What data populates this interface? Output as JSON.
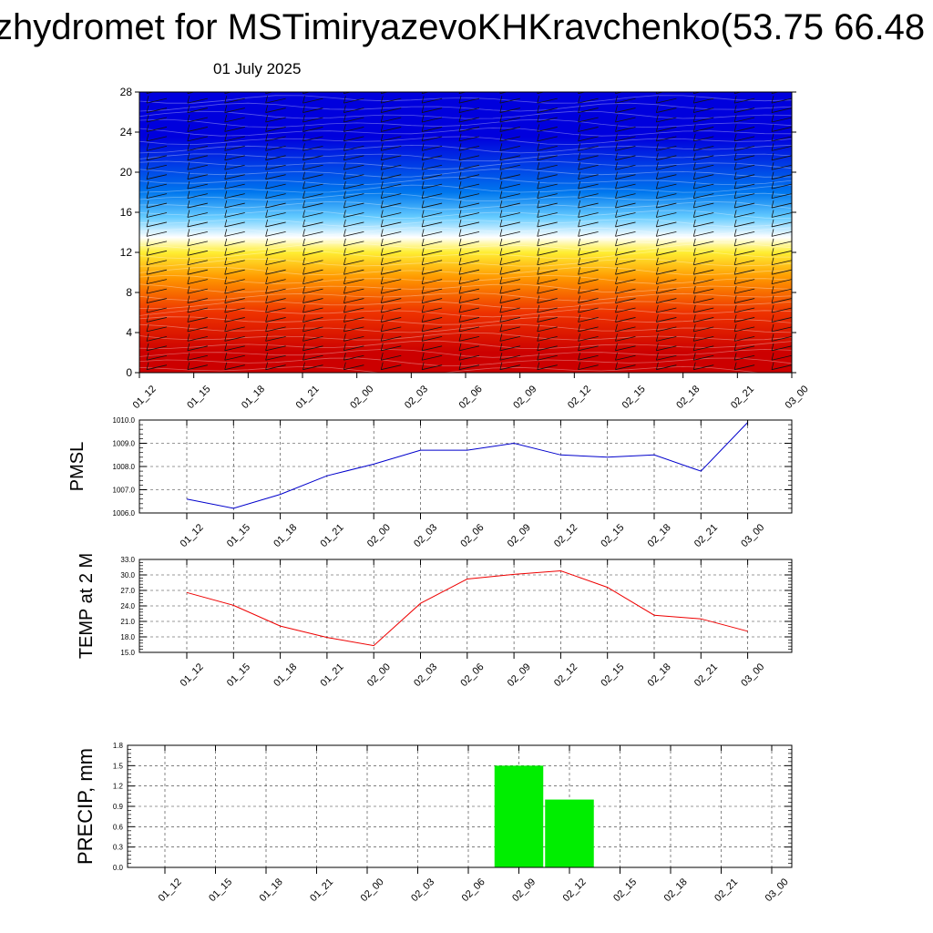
{
  "title": "zhydromet for MSTimiryazevoKHKravchenko(53.75 66.48",
  "date": "01 July 2025",
  "chart_data": [
    {
      "type": "heatmap",
      "ylim": [
        0,
        28
      ],
      "y_ticks": [
        "0",
        "4",
        "8",
        "12",
        "16",
        "20",
        "24",
        "28"
      ],
      "x_ticks": [
        "01_12",
        "01_15",
        "01_18",
        "01_21",
        "02_00",
        "02_03",
        "02_06",
        "02_09",
        "02_12",
        "02_15",
        "02_18",
        "02_21",
        "03_00"
      ],
      "color_bands": [
        {
          "from": 0,
          "to": 4,
          "color": "#cc0000"
        },
        {
          "from": 4,
          "to": 8,
          "color": "#ee3300"
        },
        {
          "from": 8,
          "to": 11,
          "color": "#ff9900"
        },
        {
          "from": 11,
          "to": 13,
          "color": "#ffee33"
        },
        {
          "from": 13,
          "to": 14,
          "color": "#ffffff"
        },
        {
          "from": 14,
          "to": 17,
          "color": "#66ccff"
        },
        {
          "from": 17,
          "to": 19,
          "color": "#0077ee"
        },
        {
          "from": 19,
          "to": 28,
          "color": "#0000dd"
        }
      ]
    },
    {
      "type": "line",
      "ylabel": "PMSL",
      "ylim": [
        1006.0,
        1010.0
      ],
      "y_ticks": [
        "1006.0",
        "1007.0",
        "1008.0",
        "1009.0",
        "1010.0"
      ],
      "x": [
        "01_12",
        "01_15",
        "01_18",
        "01_21",
        "02_00",
        "02_03",
        "02_06",
        "02_09",
        "02_12",
        "02_15",
        "02_18",
        "02_21",
        "03_00"
      ],
      "values": [
        1006.6,
        1006.2,
        1006.8,
        1007.6,
        1008.1,
        1008.7,
        1008.7,
        1009.0,
        1008.5,
        1008.4,
        1008.5,
        1007.8,
        1009.9
      ],
      "color": "#0000cc"
    },
    {
      "type": "line",
      "ylabel": "TEMP at 2 M",
      "ylim": [
        15.0,
        33.0
      ],
      "y_ticks": [
        "15.0",
        "18.0",
        "21.0",
        "24.0",
        "27.0",
        "30.0",
        "33.0"
      ],
      "x": [
        "01_12",
        "01_15",
        "01_18",
        "01_21",
        "02_00",
        "02_03",
        "02_06",
        "02_09",
        "02_12",
        "02_15",
        "02_18",
        "02_21",
        "03_00"
      ],
      "values": [
        26.6,
        24.1,
        20.1,
        17.9,
        16.3,
        24.5,
        29.2,
        30.1,
        30.8,
        27.6,
        22.2,
        21.5,
        19.1
      ],
      "color": "#ee0000"
    },
    {
      "type": "bar",
      "ylabel": "PRECIP, mm",
      "ylim": [
        0.0,
        1.8
      ],
      "y_ticks": [
        "0.0",
        "0.3",
        "0.6",
        "0.9",
        "1.2",
        "1.5",
        "1.8"
      ],
      "categories": [
        "01_12",
        "01_15",
        "01_18",
        "01_21",
        "02_00",
        "02_03",
        "02_06",
        "02_09",
        "02_12",
        "02_15",
        "02_18",
        "02_21",
        "03_00"
      ],
      "values": [
        0,
        0,
        0,
        0,
        0,
        0,
        0,
        1.5,
        1.0,
        0,
        0,
        0,
        0
      ],
      "color": "#00ee00"
    }
  ]
}
